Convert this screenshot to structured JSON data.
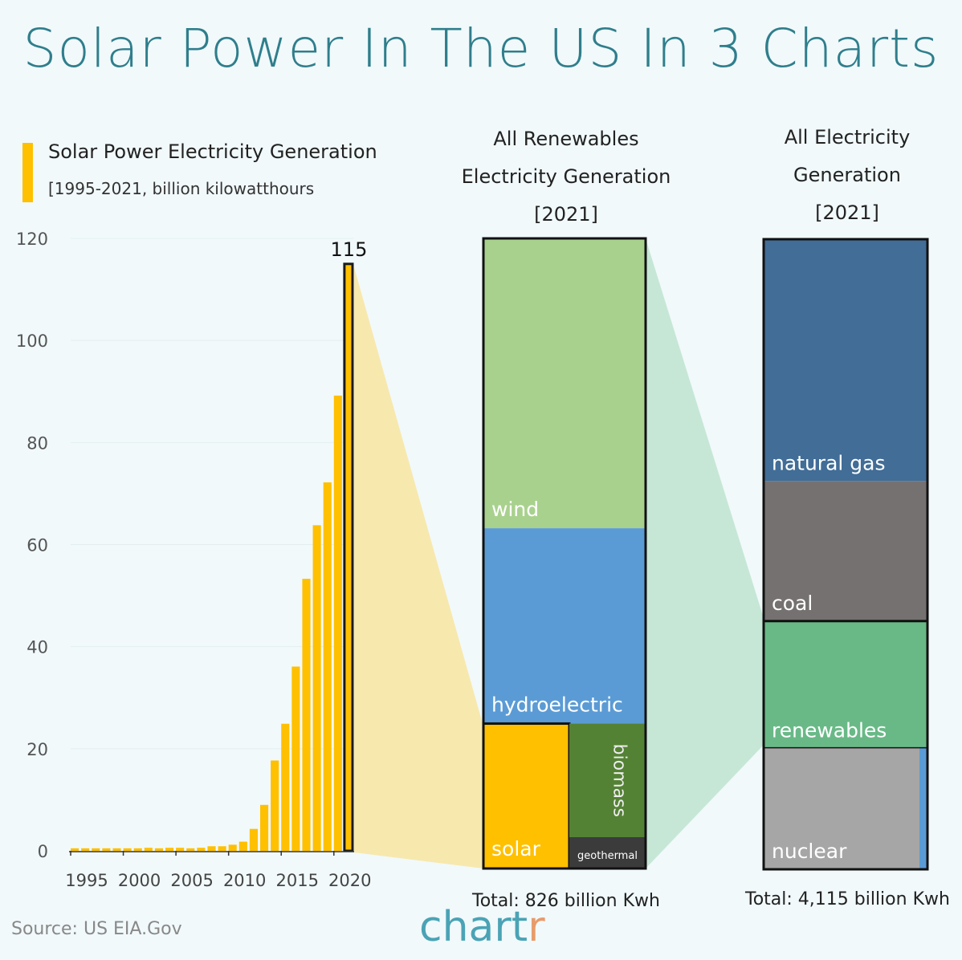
{
  "title": "Solar Power In The US In 3 Charts",
  "chart_data": [
    {
      "type": "bar",
      "title": "Solar Power Electricity Generation",
      "subtitle": "[1995-2021, billion kilowatthours",
      "categories": [
        1995,
        1996,
        1997,
        1998,
        1999,
        2000,
        2001,
        2002,
        2003,
        2004,
        2005,
        2006,
        2007,
        2008,
        2009,
        2010,
        2011,
        2012,
        2013,
        2014,
        2015,
        2016,
        2017,
        2018,
        2019,
        2020,
        2021
      ],
      "values": [
        0.5,
        0.5,
        0.5,
        0.5,
        0.5,
        0.5,
        0.5,
        0.6,
        0.5,
        0.6,
        0.6,
        0.5,
        0.6,
        0.9,
        0.9,
        1.2,
        1.8,
        4.3,
        9.0,
        17.7,
        24.9,
        36.1,
        53.3,
        63.8,
        72.2,
        89.2,
        115
      ],
      "xticks": [
        "1995",
        "2000",
        "2005",
        "2010",
        "2015",
        "2020"
      ],
      "yticks": [
        "0",
        "20",
        "40",
        "60",
        "80",
        "100",
        "120"
      ],
      "ylim": [
        0,
        120
      ],
      "grid": true,
      "highlight": {
        "category": 2021,
        "label": "115"
      },
      "color": "#ffc000"
    },
    {
      "type": "stacked-area-block",
      "title_lines": [
        "All Renewables",
        "Electricity Generation",
        "[2021]"
      ],
      "total": "Total: 826 billion Kwh",
      "segments": [
        {
          "name": "wind",
          "share": 0.46,
          "color": "#a9d18e"
        },
        {
          "name": "hydroelectric",
          "share": 0.31,
          "color": "#5b9bd5"
        },
        {
          "name": "solar",
          "share": 0.14,
          "color": "#ffc000"
        },
        {
          "name": "biomass",
          "share": 0.07,
          "color": "#548235"
        },
        {
          "name": "geothermal",
          "share": 0.02,
          "color": "#3b3b3b"
        }
      ]
    },
    {
      "type": "stacked-area-block",
      "title_lines": [
        "All Electricity",
        "Generation",
        "[2021]"
      ],
      "total": "Total: 4,115 billion Kwh",
      "segments": [
        {
          "name": "natural gas",
          "share": 0.38,
          "color": "#416d97"
        },
        {
          "name": "coal",
          "share": 0.22,
          "color": "#767171"
        },
        {
          "name": "renewables",
          "share": 0.2,
          "color": "#69b987"
        },
        {
          "name": "nuclear",
          "share": 0.19,
          "color": "#a6a6a6"
        },
        {
          "name": "",
          "share": 0.01,
          "color": "#5b9bd5"
        }
      ]
    }
  ],
  "source": "Source: US EIA.Gov",
  "logo": {
    "main": "chart",
    "accent": "r"
  }
}
